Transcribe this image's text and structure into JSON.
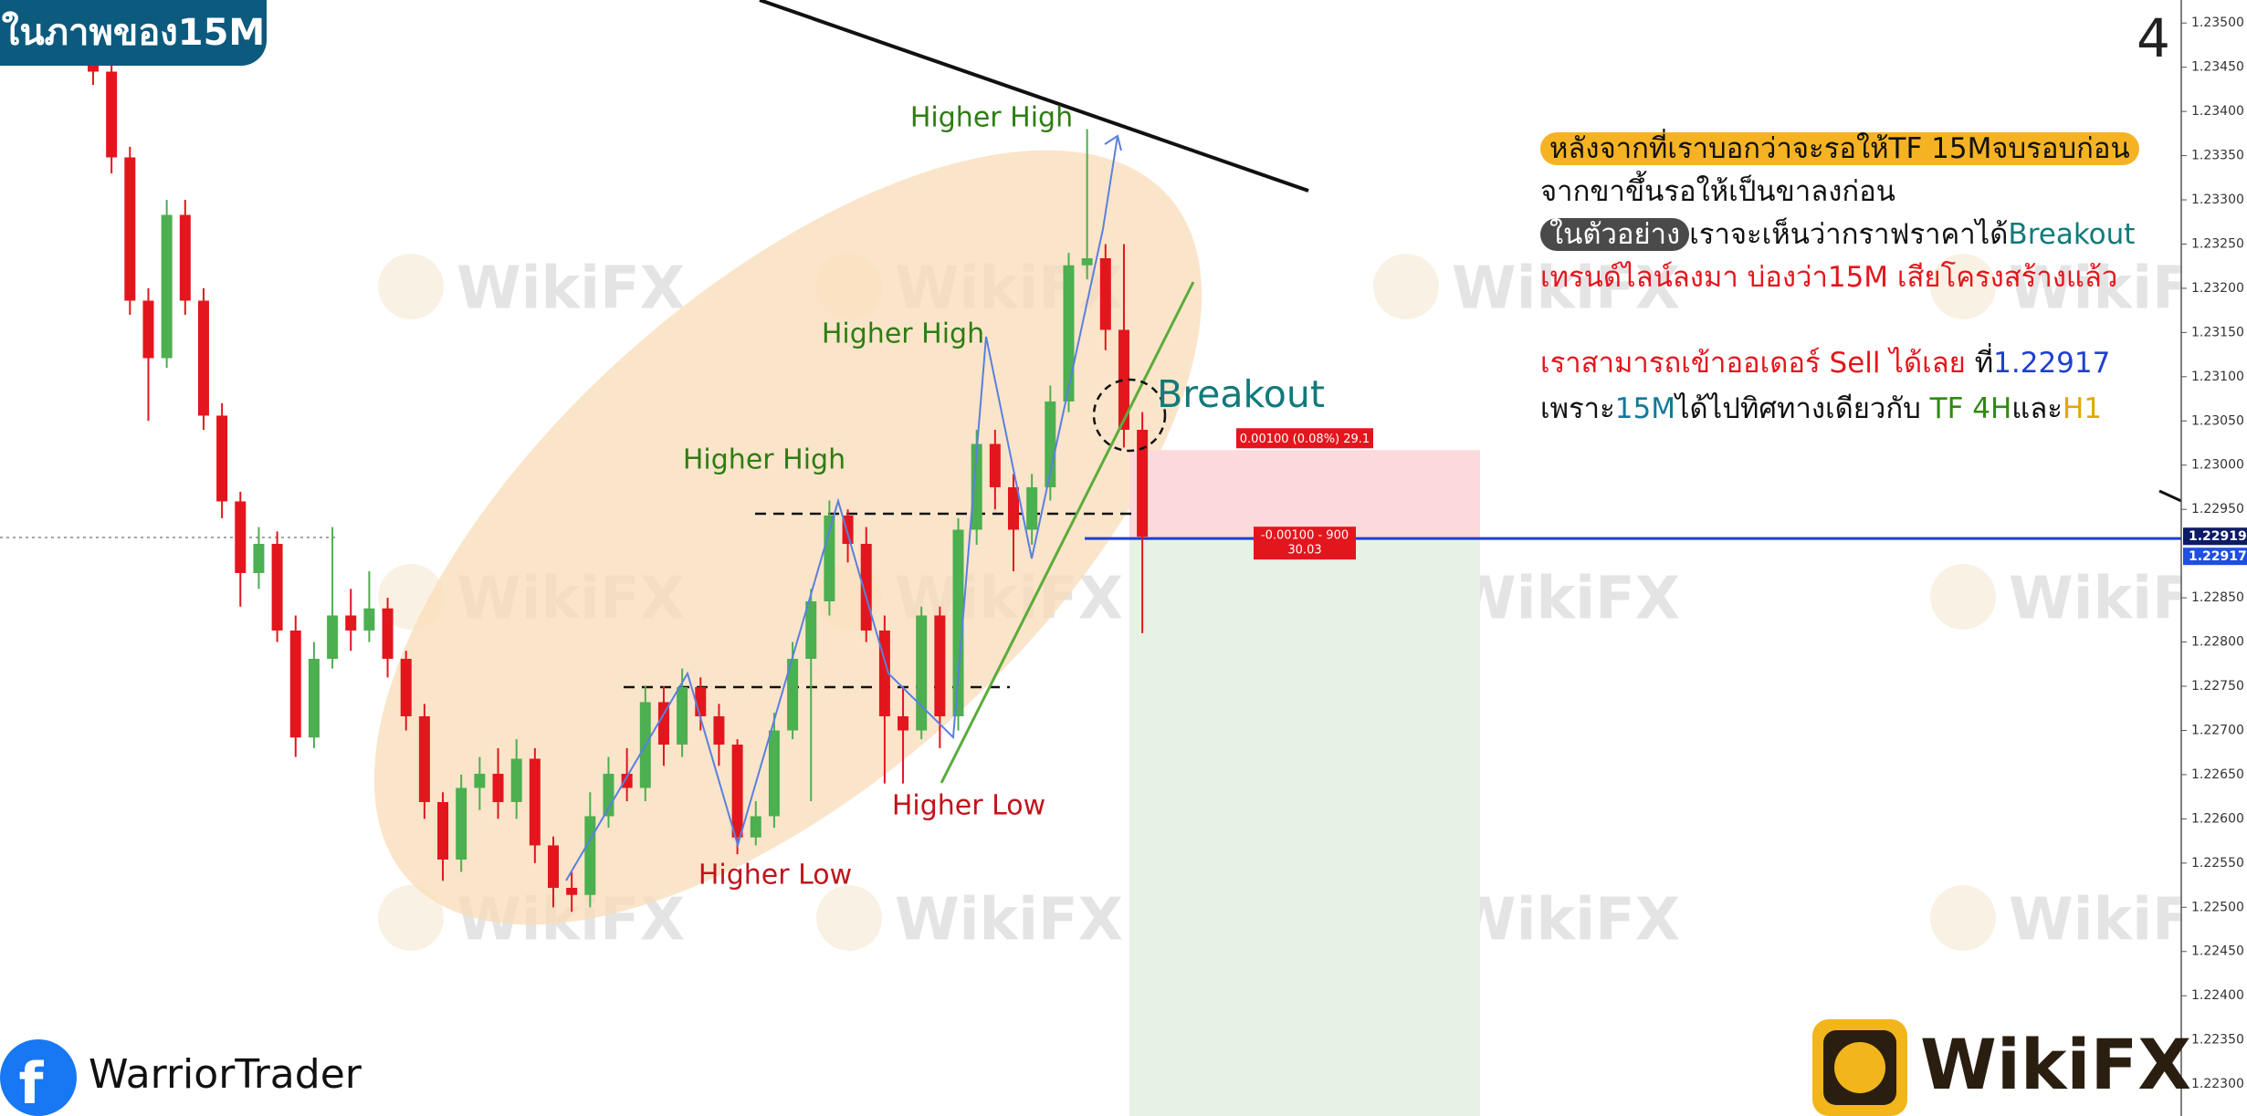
{
  "header": {
    "title": "ในภาพของ15M",
    "corner_number": "4"
  },
  "chart_data": {
    "type": "candlestick",
    "open": [
      1.235,
      1.23445,
      1.23348,
      1.23186,
      1.23121,
      1.23283,
      1.23186,
      1.23056,
      1.22959,
      1.22878,
      1.22911,
      1.22813,
      1.22692,
      1.22781,
      1.2283,
      1.22813,
      1.22838,
      1.22781,
      1.22716,
      1.22619,
      1.22554,
      1.22635,
      1.22651,
      1.22619,
      1.22668,
      1.2257,
      1.22522,
      1.22514,
      1.22603,
      1.22651,
      1.22635,
      1.22732,
      1.22684,
      1.22749,
      1.22716,
      1.22684,
      1.22579,
      1.22603,
      1.227,
      1.22781,
      1.22846,
      1.22943,
      1.22911,
      1.22813,
      1.22716,
      1.227,
      1.2283,
      1.22716,
      1.22927,
      1.23024,
      1.22975,
      1.22927,
      1.22975,
      1.23072,
      1.23226,
      1.23234,
      1.23153,
      1.2304
    ],
    "high": [
      1.2352,
      1.2346,
      1.2336,
      1.232,
      1.233,
      1.233,
      1.232,
      1.2307,
      1.2297,
      1.2293,
      1.22925,
      1.2283,
      1.228,
      1.2293,
      1.2286,
      1.2288,
      1.2285,
      1.2279,
      1.2273,
      1.2263,
      1.2265,
      1.2267,
      1.2268,
      1.2269,
      1.2268,
      1.2258,
      1.2254,
      1.2263,
      1.2267,
      1.2268,
      1.2275,
      1.2275,
      1.2277,
      1.2276,
      1.2273,
      1.2269,
      1.2262,
      1.2272,
      1.228,
      1.2286,
      1.2296,
      1.2295,
      1.2293,
      1.2283,
      1.2275,
      1.2284,
      1.2284,
      1.2294,
      1.2304,
      1.2304,
      1.2299,
      1.2299,
      1.2309,
      1.2324,
      1.2338,
      1.2325,
      1.2325,
      1.2306
    ],
    "low": [
      1.2343,
      1.2333,
      1.2317,
      1.2305,
      1.2311,
      1.2317,
      1.2304,
      1.2294,
      1.2284,
      1.2286,
      1.228,
      1.2267,
      1.2268,
      1.2277,
      1.2279,
      1.228,
      1.2276,
      1.227,
      1.226,
      1.2253,
      1.2254,
      1.2261,
      1.226,
      1.226,
      1.2255,
      1.225,
      1.22495,
      1.225,
      1.2259,
      1.2262,
      1.2262,
      1.2266,
      1.2267,
      1.227,
      1.2266,
      1.2256,
      1.2257,
      1.2259,
      1.2269,
      1.2262,
      1.2283,
      1.2289,
      1.228,
      1.2264,
      1.2264,
      1.2269,
      1.2268,
      1.227,
      1.2291,
      1.2295,
      1.2288,
      1.2291,
      1.2296,
      1.2306,
      1.2321,
      1.2313,
      1.2302,
      1.2281
    ],
    "close": [
      1.23445,
      1.23348,
      1.23186,
      1.23121,
      1.23283,
      1.23186,
      1.23056,
      1.22959,
      1.22878,
      1.22911,
      1.22813,
      1.22692,
      1.22781,
      1.2283,
      1.22813,
      1.22838,
      1.22781,
      1.22716,
      1.22619,
      1.22554,
      1.22635,
      1.22651,
      1.22619,
      1.22668,
      1.2257,
      1.22522,
      1.22514,
      1.22603,
      1.22651,
      1.22635,
      1.22732,
      1.22684,
      1.22749,
      1.22716,
      1.22684,
      1.22579,
      1.22603,
      1.227,
      1.22781,
      1.22846,
      1.22943,
      1.22911,
      1.22813,
      1.22716,
      1.227,
      1.2283,
      1.22716,
      1.22927,
      1.23024,
      1.22975,
      1.22927,
      1.22975,
      1.23072,
      1.23226,
      1.23234,
      1.23153,
      1.2304,
      1.22919
    ],
    "up_color": "#4caf50",
    "down_color": "#e3161d",
    "ylim": [
      1.22264,
      1.23526
    ],
    "yticks": [
      {
        "value": 1.235,
        "label": "1.23500"
      },
      {
        "value": 1.2345,
        "label": "1.23450"
      },
      {
        "value": 1.234,
        "label": "1.23400"
      },
      {
        "value": 1.2335,
        "label": "1.23350"
      },
      {
        "value": 1.233,
        "label": "1.23300"
      },
      {
        "value": 1.2325,
        "label": "1.23250"
      },
      {
        "value": 1.232,
        "label": "1.23200"
      },
      {
        "value": 1.2315,
        "label": "1.23150"
      },
      {
        "value": 1.231,
        "label": "1.23100"
      },
      {
        "value": 1.2305,
        "label": "1.23050"
      },
      {
        "value": 1.23,
        "label": "1.23000"
      },
      {
        "value": 1.2295,
        "label": "1.22950"
      },
      {
        "value": 1.2285,
        "label": "1.22850"
      },
      {
        "value": 1.228,
        "label": "1.22800"
      },
      {
        "value": 1.2275,
        "label": "1.22750"
      },
      {
        "value": 1.227,
        "label": "1.22700"
      },
      {
        "value": 1.2265,
        "label": "1.22650"
      },
      {
        "value": 1.226,
        "label": "1.22600"
      },
      {
        "value": 1.2255,
        "label": "1.22550"
      },
      {
        "value": 1.225,
        "label": "1.22500"
      },
      {
        "value": 1.2245,
        "label": "1.22450"
      },
      {
        "value": 1.224,
        "label": "1.22400"
      },
      {
        "value": 1.2235,
        "label": "1.22350"
      },
      {
        "value": 1.223,
        "label": "1.22300"
      }
    ],
    "price_tags": [
      {
        "value": 1.22919,
        "color": "#0d1a66"
      },
      {
        "value": 1.22917,
        "color": "#1f4fe0"
      }
    ],
    "position": {
      "stop": 1.23017,
      "stop_label": "0.00100 (0.08%) 29.1",
      "entry_label": [
        "-0.00100 - 900",
        "30.03"
      ],
      "line_color": "#1f3fd0"
    },
    "annotations": [
      {
        "text": "Higher High",
        "color": "#2e7d12"
      },
      {
        "text": "Higher High",
        "color": "#2e7d12"
      },
      {
        "text": "Higher High",
        "color": "#2e7d12"
      },
      {
        "text": "Higher Low",
        "color": "#c0141c"
      },
      {
        "text": "Higher Low",
        "color": "#c0141c"
      },
      {
        "text": "Breakout",
        "color": "#117a7a"
      }
    ]
  },
  "notes": [
    [
      {
        "text": "หลังจากที่เราบอกว่าจะรอให้TF 15Mจบรอบก่อน",
        "color": "#111111",
        "bg": "#f5b324"
      }
    ],
    [
      {
        "text": "จากขาขึ้นรอให้เป็นขาลงก่อน",
        "color": "#111111"
      }
    ],
    [
      {
        "text": "ในตัวอย่าง",
        "color": "#ffffff",
        "bg": "#4a4a4a"
      },
      {
        "text": "เราจะเห็นว่ากราฟราคาได้",
        "color": "#111111"
      },
      {
        "text": "Breakout",
        "color": "#117a7a"
      }
    ],
    [
      {
        "text": "เทรนด์ไลน์ลงมา บ่องว่า15M เสียโครงสร้างแล้ว",
        "color": "#e3161d"
      }
    ],
    [
      {
        "text": "เราสามารถเข้าออเดอร์ Sell ได้เลย",
        "color": "#e3161d"
      },
      {
        "text": " ที่",
        "color": "#111111"
      },
      {
        "text": "1.22917",
        "color": "#1f3fd0"
      }
    ],
    [
      {
        "text": "เพราะ",
        "color": "#111111"
      },
      {
        "text": "15M",
        "color": "#117a9a"
      },
      {
        "text": "ได้ไปทิศทางเดียวกับ ",
        "color": "#111111"
      },
      {
        "text": "TF 4H",
        "color": "#2e8b12"
      },
      {
        "text": "และ",
        "color": "#111111"
      },
      {
        "text": "H1",
        "color": "#e0a800"
      }
    ]
  ],
  "footer": {
    "brand": "WarriorTrader",
    "logo": "WikiFX"
  },
  "watermark": "WikiFX"
}
